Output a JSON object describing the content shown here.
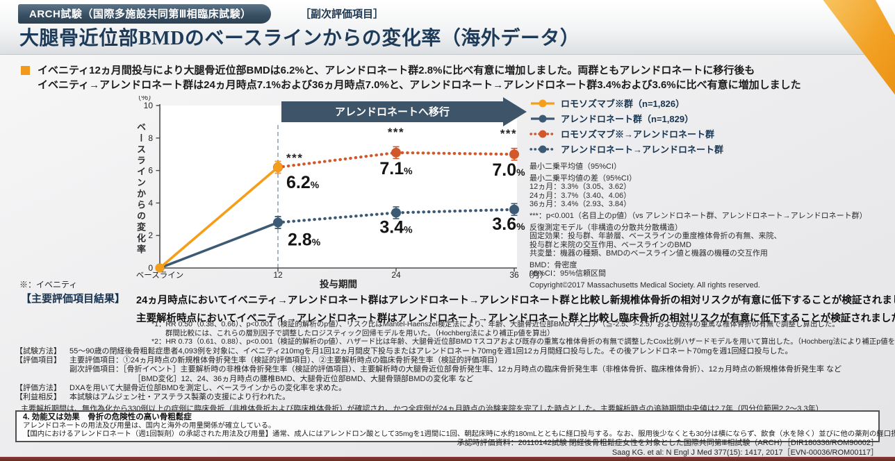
{
  "header": {
    "badge": "ARCH試験（国際多施設共同第Ⅲ相臨床試験）",
    "sub_badge": "［副次評価項目］",
    "title": "大腿骨近位部BMDのベースラインからの変化率（海外データ）"
  },
  "summary": {
    "line1": "イベニティ12ヵ月間投与により大腿骨近位部BMDは6.2%と、アレンドロネート群2.8%に比べ有意に増加しました。両群ともアレンドロネートに移行後も",
    "line2": "イベニティ→アレンドロネート群は24ヵ月時点7.1%および36ヵ月時点7.0%と、アレンドロネート→アレンドロネート群3.4%および3.6%に比べ有意に増加しました"
  },
  "chart_data": {
    "type": "line",
    "xlabel": "投与期間",
    "x_unit": "（月）",
    "y_unit": "（%）",
    "ylabel": "ベースラインからの変化率",
    "ylim": [
      0,
      10
    ],
    "y_ticks": [
      0,
      2,
      4,
      6,
      8,
      10
    ],
    "x_ticks": [
      {
        "month": 0,
        "label": "ベースライン"
      },
      {
        "month": 12,
        "label": "12"
      },
      {
        "month": 24,
        "label": "24"
      },
      {
        "month": 36,
        "label": "36"
      }
    ],
    "banner": "アレンドロネートへ移行",
    "banner_color": "#3e5468",
    "series": [
      {
        "name": "ロモソズマブ※群（n=1,826）",
        "color": "#f59e19",
        "style": "solid",
        "points": [
          [
            0,
            0
          ],
          [
            12,
            6.2
          ]
        ]
      },
      {
        "name": "アレンドロネート群（n=1,829）",
        "color": "#3d5a75",
        "style": "solid",
        "points": [
          [
            0,
            0
          ],
          [
            12,
            2.8
          ]
        ]
      },
      {
        "name": "ロモソズマブ※→アレンドロネート群",
        "color": "#d2582c",
        "style": "dotted",
        "points": [
          [
            12,
            6.2
          ],
          [
            24,
            7.1
          ],
          [
            36,
            7.0
          ]
        ]
      },
      {
        "name": "アレンドロネート→アレンドロネート群",
        "color": "#3d5a75",
        "style": "dotted",
        "points": [
          [
            12,
            2.8
          ],
          [
            24,
            3.4
          ],
          [
            36,
            3.6
          ]
        ]
      }
    ],
    "annotations": [
      {
        "month": 12,
        "value": 6.2,
        "sig": "***",
        "label": "6.2",
        "anchor": "start",
        "dx": 12,
        "sig_dy": -8,
        "label_dy": 30
      },
      {
        "month": 24,
        "value": 7.1,
        "sig": "***",
        "label": "7.1",
        "anchor": "middle",
        "dx": 0,
        "sig_dy": -24,
        "label_dy": 31
      },
      {
        "month": 36,
        "value": 7.0,
        "sig": "***",
        "label": "7.0",
        "anchor": "middle",
        "dx": -8,
        "sig_dy": -24,
        "label_dy": 31
      },
      {
        "month": 12,
        "value": 2.8,
        "sig": "",
        "label": "2.8",
        "anchor": "start",
        "dx": 14,
        "sig_dy": 0,
        "label_dy": 33
      },
      {
        "month": 24,
        "value": 3.4,
        "sig": "",
        "label": "3.4",
        "anchor": "middle",
        "dx": 0,
        "sig_dy": 0,
        "label_dy": 29
      },
      {
        "month": 36,
        "value": 3.6,
        "sig": "",
        "label": "3.6",
        "anchor": "middle",
        "dx": -8,
        "sig_dy": 0,
        "label_dy": 29
      }
    ]
  },
  "chart_note": "※：イベニティ",
  "stats": {
    "groups": [
      [
        "最小二乗平均値（95%CI）"
      ],
      [
        "最小二乗平均値の差（95%CI）",
        "12ヵ月：3.3%（3.05、3.62）",
        "24ヵ月：3.7%（3.40、4.06）",
        "36ヵ月：3.4%（2.93、3.84）"
      ],
      [
        "***：p<0.001（名目上のp値）（vs アレンドロネート群、アレンドロネート→アレンドロネート群）"
      ],
      [
        "反復測定モデル（非構造の分散共分散構造）",
        "固定効果：投与群、年齢層、ベースラインの重度椎体骨折の有無、来院、",
        "投与群と来院の交互作用、ベースラインのBMD",
        "共変量：機器の種類、BMDのベースライン値と機器の機種の交互作用"
      ],
      [
        "BMD：骨密度",
        "95%CI：95%信頼区間"
      ],
      [
        "Copyright©2017 Massachusetts Medical Society. All rights reserved."
      ]
    ]
  },
  "results": {
    "label": "【主要評価項目結果】",
    "lines": [
      {
        "text": "24ヵ月時点においてイベニティ→アレンドロネート群はアレンドロネート→アレンドロネート群と比較し新規椎体骨折の相対リスクが有意に低下することが検証されました",
        "sup": "*1"
      },
      {
        "text": "主要解析時点においてイベニティ→アレンドロネート群はアレンドロネート→アレンドロネート群と比較し臨床骨折の相対リスクが有意に低下することが検証されました",
        "sup": "*2"
      }
    ]
  },
  "footnotes": [
    {
      "text": "*1：RR 0.50（0.38、0.66）、p<0.001（検証的解析のp値）、リスク比はMantel-Haenszel検定法により、年齢、大腿骨近位部BMD Tスコア（≦-2.5、>-2.5）および既存の重篤な椎体骨折の有無で調整し算出した。",
      "indent": 0
    },
    {
      "text": "群間比較には、これらの層別因子で調整したロジスティック回帰モデルを用いた。（Hochberg法により補正p値を算出）",
      "indent": 1
    },
    {
      "text": "*2：HR 0.73（0.61、0.88）、p<0.001（検証的解析のp値）、ハザード比は年齢、大腿骨近位部BMD Tスコアおよび既存の重篤な椎体骨折の有無で調整したCox比例ハザードモデルを用いて算出した。（Hochberg法により補正p値を算出）",
      "indent": 0
    }
  ],
  "methods": [
    {
      "label": "【試験方法】",
      "text": "55～90歳の閉経後骨粗鬆症患者4,093例を対象に、イベニティ210mgを月1回12ヵ月間皮下投与またはアレンドロネート70mgを週1回12ヵ月間経口投与した。その後アレンドロネート70mgを週1回経口投与した。",
      "indent": 0
    },
    {
      "label": "【評価項目】",
      "text": "主要評価項目：①24ヵ月時点の新規椎体骨折発生率（検証的評価項目）、②主要解析時点の臨床骨折発生率（検証的評価項目）",
      "indent": 0
    },
    {
      "label": "",
      "text": "副次評価項目：［骨折イベント］主要解析時の非椎体骨折発生率（検証的評価項目）、主要解析時の大腿骨近位部骨折発生率、12ヵ月時点の臨床骨折発生率（非椎体骨折、臨床椎体骨折）、12ヵ月時点の新規椎体骨折発生率 など",
      "indent": 1
    },
    {
      "label": "",
      "text": "［BMD変化］12、24、36ヵ月時点の腰椎BMD、大腿骨近位部BMD、大腿骨頸部BMDの変化率 など",
      "indent": 2
    },
    {
      "label": "【評価方法】",
      "text": "DXAを用いて大腿骨近位部BMDを測定し、ベースラインからの変化率を求めた。",
      "indent": 0
    },
    {
      "label": "【利益相反】",
      "text": "本試験はアムジェン社・アステラス製薬の支援により行われた。",
      "indent": 0
    }
  ],
  "analysis_note": "主要解析期間は、無作為化から330例以上の症例に臨床骨折（非椎体骨折および臨床椎体骨折）が確認され、かつ全症例が24ヵ月時点の治験来院を完了した時点とした。主要解析時点の追跡期間中央値は2.7年（四分位範囲2.2～3.3年）",
  "box": {
    "title": "4. 効能又は効果　骨折の危険性の高い骨粗鬆症",
    "lines": [
      "アレンドロネートの用法及び用量は、国内と海外の用量関係が確立している。",
      "【国内におけるアレンドロネート（週1回製剤）の承認された用法及び用量】通常、成人にはアレンドロン酸として35mgを1週間に1回、朝起床時に水約180mLとともに経口投与する。なお、服用後少なくとも30分は横にならず、飲食（水を除く）並びに他の薬剤の経口摂取も避けること。"
    ]
  },
  "footer": {
    "lines": [
      "承認時評価資料：20110142試験 閉経後骨粗鬆症女性を対象とした国際共同第Ⅲ相試験（ARCH）［DIR180336/ROM90002］",
      "Saag KG. et al: N Engl J Med 377(15): 1417, 2017［EVN-00036/ROM00117］"
    ]
  },
  "colors": {
    "accent_orange": "#f59e19",
    "accent_red": "#d2582c",
    "navy": "#3d5a75",
    "banner": "#3e5468",
    "maroon_bar": "#6e2c2c"
  }
}
